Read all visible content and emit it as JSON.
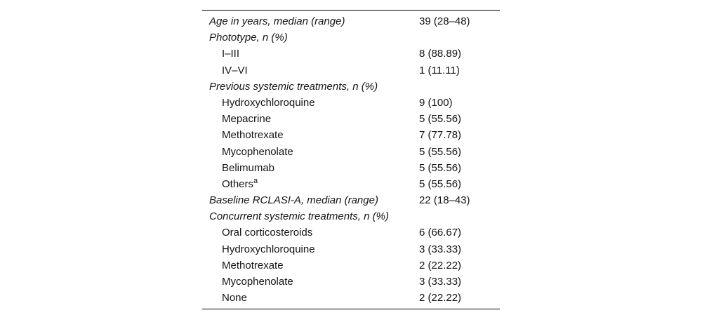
{
  "table": {
    "description": "patient-baseline-characteristics-table",
    "rule_color": "#000000",
    "text_color": "#141414",
    "background_color": "#ffffff",
    "columns": [
      "characteristic",
      "value"
    ],
    "rows": [
      {
        "type": "category",
        "label": "Age in years, median (range)",
        "value": "39 (28–48)"
      },
      {
        "type": "category",
        "label": "Phototype, n (%)",
        "value": ""
      },
      {
        "type": "item",
        "label": "I–III",
        "value": "8 (88.89)"
      },
      {
        "type": "item",
        "label": "IV–VI",
        "value": "1 (11.11)"
      },
      {
        "type": "category",
        "label": "Previous systemic treatments, n (%)",
        "value": ""
      },
      {
        "type": "item",
        "label": "Hydroxychloroquine",
        "value": "9 (100)"
      },
      {
        "type": "item",
        "label": "Mepacrine",
        "value": "5 (55.56)"
      },
      {
        "type": "item",
        "label": "Methotrexate",
        "value": "7 (77.78)"
      },
      {
        "type": "item",
        "label": "Mycophenolate",
        "value": "5 (55.56)"
      },
      {
        "type": "item",
        "label": "Belimumab",
        "value": "5 (55.56)"
      },
      {
        "type": "item",
        "label": "Others",
        "sup": "a",
        "value": "5 (55.56)"
      },
      {
        "type": "category",
        "label": "Baseline RCLASI-A, median (range)",
        "value": "22 (18–43)"
      },
      {
        "type": "category",
        "label": "Concurrent systemic treatments, n (%)",
        "value": ""
      },
      {
        "type": "item",
        "label": "Oral corticosteroids",
        "value": "6 (66.67)"
      },
      {
        "type": "item",
        "label": "Hydroxychloroquine",
        "value": "3 (33.33)"
      },
      {
        "type": "item",
        "label": "Methotrexate",
        "value": "2 (22.22)"
      },
      {
        "type": "item",
        "label": "Mycophenolate",
        "value": "3 (33.33)"
      },
      {
        "type": "item",
        "label": "None",
        "value": "2 (22.22)"
      }
    ]
  }
}
